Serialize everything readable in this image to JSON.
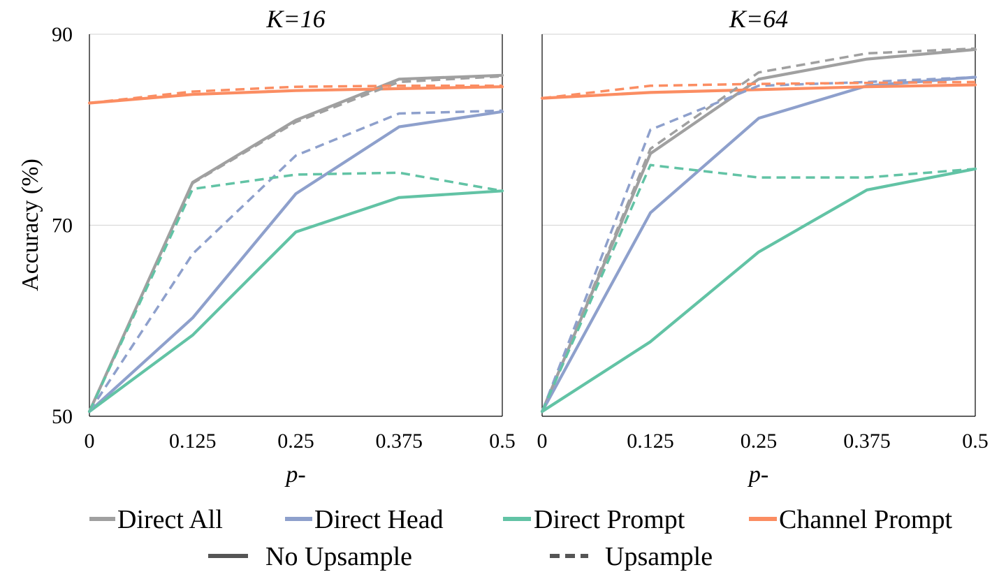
{
  "chart_data": {
    "type": "line",
    "ylabel": "Accuracy (%)",
    "ylim": [
      50,
      90
    ],
    "yticks": [
      50,
      70,
      90
    ],
    "grid": true,
    "x": [
      0,
      0.125,
      0.25,
      0.375,
      0.5
    ],
    "xtick_labels": [
      "0",
      "0.125",
      "0.25",
      "0.375",
      "0.5"
    ],
    "xlabel": "p-",
    "panels": [
      {
        "title": "K=16",
        "series": [
          {
            "name": "Direct All",
            "style": "No Upsample",
            "color": "#a0a0a0",
            "values": [
              50.5,
              74.5,
              81.0,
              85.3,
              85.7
            ]
          },
          {
            "name": "Direct All",
            "style": "Upsample",
            "color": "#a0a0a0",
            "values": [
              50.5,
              74.4,
              80.8,
              85.0,
              85.6
            ]
          },
          {
            "name": "Direct Head",
            "style": "No Upsample",
            "color": "#8ea0cc",
            "values": [
              50.5,
              60.3,
              73.3,
              80.3,
              81.9
            ]
          },
          {
            "name": "Direct Head",
            "style": "Upsample",
            "color": "#8ea0cc",
            "values": [
              50.5,
              67.0,
              77.3,
              81.7,
              82.0
            ]
          },
          {
            "name": "Direct Prompt",
            "style": "No Upsample",
            "color": "#62c3a5",
            "values": [
              50.5,
              58.5,
              69.3,
              72.9,
              73.6
            ]
          },
          {
            "name": "Direct Prompt",
            "style": "Upsample",
            "color": "#62c3a5",
            "values": [
              50.5,
              73.8,
              75.3,
              75.5,
              73.6
            ]
          },
          {
            "name": "Channel Prompt",
            "style": "No Upsample",
            "color": "#fb8d62",
            "values": [
              82.8,
              83.7,
              84.1,
              84.3,
              84.5
            ]
          },
          {
            "name": "Channel Prompt",
            "style": "Upsample",
            "color": "#fb8d62",
            "values": [
              82.8,
              84.0,
              84.5,
              84.6,
              84.6
            ]
          }
        ]
      },
      {
        "title": "K=64",
        "series": [
          {
            "name": "Direct All",
            "style": "No Upsample",
            "color": "#a0a0a0",
            "values": [
              50.5,
              77.5,
              85.3,
              87.4,
              88.4
            ]
          },
          {
            "name": "Direct All",
            "style": "Upsample",
            "color": "#a0a0a0",
            "values": [
              50.5,
              78.0,
              86.0,
              88.0,
              88.5
            ]
          },
          {
            "name": "Direct Head",
            "style": "No Upsample",
            "color": "#8ea0cc",
            "values": [
              50.5,
              71.3,
              81.2,
              84.6,
              85.5
            ]
          },
          {
            "name": "Direct Head",
            "style": "Upsample",
            "color": "#8ea0cc",
            "values": [
              50.5,
              80.0,
              84.6,
              85.0,
              85.5
            ]
          },
          {
            "name": "Direct Prompt",
            "style": "No Upsample",
            "color": "#62c3a5",
            "values": [
              50.5,
              57.8,
              67.2,
              73.7,
              75.9
            ]
          },
          {
            "name": "Direct Prompt",
            "style": "Upsample",
            "color": "#62c3a5",
            "values": [
              50.5,
              76.3,
              75.0,
              75.0,
              75.9
            ]
          },
          {
            "name": "Channel Prompt",
            "style": "No Upsample",
            "color": "#fb8d62",
            "values": [
              83.3,
              83.9,
              84.2,
              84.5,
              84.7
            ]
          },
          {
            "name": "Channel Prompt",
            "style": "Upsample",
            "color": "#fb8d62",
            "values": [
              83.3,
              84.6,
              84.8,
              84.9,
              85.0
            ]
          }
        ]
      }
    ],
    "legend": {
      "methods": [
        {
          "label": "Direct All",
          "color": "#a0a0a0"
        },
        {
          "label": "Direct Head",
          "color": "#8ea0cc"
        },
        {
          "label": "Direct Prompt",
          "color": "#62c3a5"
        },
        {
          "label": "Channel Prompt",
          "color": "#fb8d62"
        }
      ],
      "styles": [
        {
          "label": "No Upsample",
          "color": "#555555",
          "dashed": false
        },
        {
          "label": "Upsample",
          "color": "#555555",
          "dashed": true
        }
      ],
      "position": "bottom"
    }
  }
}
